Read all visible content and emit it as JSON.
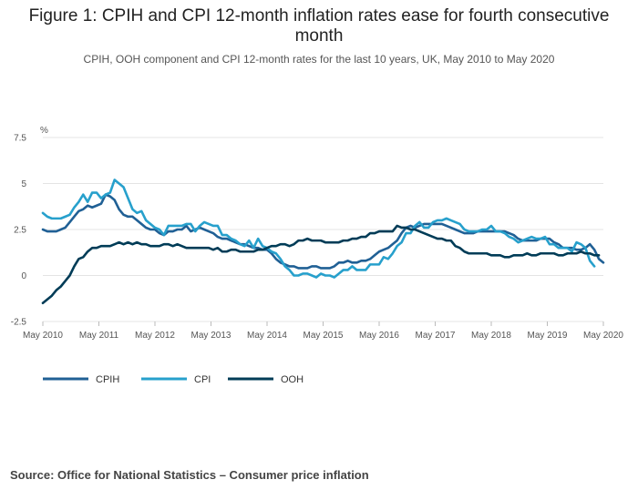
{
  "title": "Figure 1: CPIH and CPI 12-month inflation rates ease for fourth consecutive month",
  "subtitle": "CPIH, OOH component and CPI 12-month rates for the last 10 years, UK, May 2010 to May 2020",
  "source": "Source: Office for National Statistics – Consumer price inflation",
  "colors": {
    "CPIH": "#206095",
    "CPI": "#27a0cc",
    "OOH": "#003c57",
    "grid": "#e4e4e4"
  },
  "chart_data": {
    "type": "line",
    "ylabel": "%",
    "ylim": [
      -2.5,
      7.5
    ],
    "yticks": [
      "7.5",
      "5",
      "2.5",
      "0",
      "-2.5"
    ],
    "x_start": "May 2010",
    "x_end": "May 2020",
    "xticks": [
      "May 2010",
      "May 2011",
      "May 2012",
      "May 2013",
      "May 2014",
      "May 2015",
      "May 2016",
      "May 2017",
      "May 2018",
      "May 2019",
      "May 2020"
    ],
    "grid": true,
    "legend_position": "bottom-left",
    "series": [
      {
        "name": "CPIH",
        "values": [
          2.5,
          2.4,
          2.4,
          2.4,
          2.5,
          2.6,
          2.9,
          3.2,
          3.5,
          3.6,
          3.8,
          3.7,
          3.8,
          3.9,
          4.4,
          4.3,
          4.1,
          3.6,
          3.3,
          3.2,
          3.2,
          3.0,
          2.8,
          2.6,
          2.5,
          2.5,
          2.3,
          2.2,
          2.4,
          2.4,
          2.5,
          2.5,
          2.7,
          2.4,
          2.5,
          2.6,
          2.5,
          2.4,
          2.3,
          2.1,
          2.0,
          2.0,
          1.9,
          1.8,
          1.7,
          1.7,
          1.6,
          1.5,
          1.5,
          1.4,
          1.4,
          1.2,
          0.9,
          0.7,
          0.6,
          0.5,
          0.5,
          0.4,
          0.4,
          0.4,
          0.5,
          0.5,
          0.4,
          0.4,
          0.4,
          0.5,
          0.7,
          0.7,
          0.8,
          0.7,
          0.7,
          0.8,
          0.8,
          0.9,
          1.1,
          1.3,
          1.4,
          1.5,
          1.7,
          1.9,
          2.3,
          2.6,
          2.7,
          2.6,
          2.7,
          2.8,
          2.8,
          2.8,
          2.8,
          2.8,
          2.7,
          2.6,
          2.5,
          2.4,
          2.3,
          2.3,
          2.3,
          2.4,
          2.4,
          2.4,
          2.4,
          2.4,
          2.4,
          2.4,
          2.3,
          2.2,
          2.0,
          1.9,
          1.9,
          1.9,
          1.9,
          2.0,
          2.0,
          2.0,
          1.8,
          1.7,
          1.5,
          1.5,
          1.5,
          1.4,
          1.4,
          1.5,
          1.7,
          1.4,
          0.9,
          0.7
        ]
      },
      {
        "name": "CPI",
        "values": [
          3.4,
          3.2,
          3.1,
          3.1,
          3.1,
          3.2,
          3.3,
          3.7,
          4.0,
          4.4,
          4.0,
          4.5,
          4.5,
          4.2,
          4.4,
          4.5,
          5.2,
          5.0,
          4.8,
          4.2,
          3.6,
          3.4,
          3.5,
          3.0,
          2.8,
          2.6,
          2.5,
          2.2,
          2.7,
          2.7,
          2.7,
          2.7,
          2.8,
          2.8,
          2.4,
          2.7,
          2.9,
          2.8,
          2.7,
          2.7,
          2.2,
          2.2,
          2.0,
          1.9,
          1.7,
          1.6,
          1.9,
          1.5,
          2.0,
          1.6,
          1.5,
          1.3,
          1.2,
          0.9,
          0.5,
          0.3,
          0.0,
          0.0,
          0.1,
          0.1,
          0.0,
          -0.1,
          0.1,
          0.0,
          0.0,
          -0.1,
          0.1,
          0.3,
          0.3,
          0.5,
          0.3,
          0.3,
          0.3,
          0.6,
          0.6,
          0.6,
          1.0,
          0.9,
          1.2,
          1.6,
          1.8,
          2.3,
          2.3,
          2.7,
          2.9,
          2.6,
          2.6,
          2.9,
          3.0,
          3.0,
          3.1,
          3.0,
          2.9,
          2.8,
          2.5,
          2.4,
          2.4,
          2.4,
          2.5,
          2.5,
          2.7,
          2.4,
          2.4,
          2.3,
          2.1,
          2.0,
          1.8,
          1.9,
          2.0,
          2.1,
          2.0,
          2.0,
          2.1,
          1.7,
          1.7,
          1.5,
          1.5,
          1.5,
          1.3,
          1.8,
          1.7,
          1.5,
          0.8,
          0.5
        ]
      },
      {
        "name": "OOH",
        "values": [
          -1.5,
          -1.3,
          -1.1,
          -0.8,
          -0.6,
          -0.3,
          0.0,
          0.5,
          0.9,
          1.0,
          1.3,
          1.5,
          1.5,
          1.6,
          1.6,
          1.6,
          1.7,
          1.8,
          1.7,
          1.8,
          1.7,
          1.8,
          1.7,
          1.7,
          1.6,
          1.6,
          1.6,
          1.7,
          1.7,
          1.6,
          1.7,
          1.6,
          1.5,
          1.5,
          1.5,
          1.5,
          1.5,
          1.5,
          1.4,
          1.5,
          1.3,
          1.3,
          1.4,
          1.4,
          1.3,
          1.3,
          1.3,
          1.3,
          1.4,
          1.4,
          1.5,
          1.6,
          1.6,
          1.7,
          1.7,
          1.6,
          1.7,
          1.9,
          1.9,
          2.0,
          1.9,
          1.9,
          1.9,
          1.8,
          1.8,
          1.8,
          1.8,
          1.9,
          1.9,
          2.0,
          2.0,
          2.1,
          2.1,
          2.3,
          2.3,
          2.4,
          2.4,
          2.4,
          2.4,
          2.7,
          2.6,
          2.6,
          2.5,
          2.5,
          2.4,
          2.3,
          2.2,
          2.1,
          2.0,
          2.0,
          1.9,
          1.9,
          1.6,
          1.5,
          1.3,
          1.2,
          1.2,
          1.2,
          1.2,
          1.2,
          1.1,
          1.1,
          1.1,
          1.0,
          1.0,
          1.1,
          1.1,
          1.1,
          1.2,
          1.1,
          1.1,
          1.2,
          1.2,
          1.2,
          1.2,
          1.1,
          1.1,
          1.2,
          1.2,
          1.2,
          1.3,
          1.2,
          1.2,
          1.1,
          1.1
        ]
      }
    ]
  }
}
